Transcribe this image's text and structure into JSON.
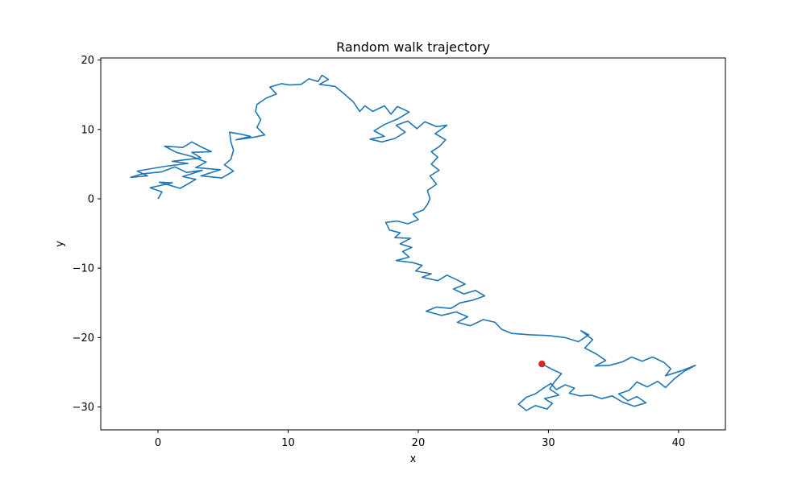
{
  "chart_data": {
    "type": "line",
    "title": "Random walk trajectory",
    "xlabel": "x",
    "ylabel": "y",
    "xlim": [
      -4.4,
      43.6
    ],
    "ylim": [
      -33.3,
      20.3
    ],
    "x_ticks": [
      0,
      10,
      20,
      30,
      40
    ],
    "y_ticks": [
      -30,
      -20,
      -10,
      0,
      10,
      20
    ],
    "grid": false,
    "series": [
      {
        "color": "#1f77b4",
        "points": [
          [
            0.0,
            0.0
          ],
          [
            0.3,
            1.0
          ],
          [
            -0.6,
            1.6
          ],
          [
            1.1,
            2.3
          ],
          [
            0.1,
            2.4
          ],
          [
            1.7,
            1.5
          ],
          [
            2.9,
            2.8
          ],
          [
            1.9,
            3.2
          ],
          [
            3.4,
            4.1
          ],
          [
            2.2,
            3.8
          ],
          [
            1.3,
            4.6
          ],
          [
            0.3,
            3.9
          ],
          [
            -1.2,
            3.6
          ],
          [
            -2.1,
            3.1
          ],
          [
            -0.8,
            3.3
          ],
          [
            -1.6,
            4.0
          ],
          [
            0.6,
            4.7
          ],
          [
            2.3,
            5.1
          ],
          [
            1.1,
            5.4
          ],
          [
            3.3,
            5.9
          ],
          [
            2.6,
            6.7
          ],
          [
            4.1,
            6.8
          ],
          [
            3.2,
            7.6
          ],
          [
            2.6,
            8.2
          ],
          [
            1.9,
            7.4
          ],
          [
            0.5,
            7.6
          ],
          [
            1.4,
            6.7
          ],
          [
            2.6,
            6.1
          ],
          [
            3.7,
            5.3
          ],
          [
            2.9,
            4.5
          ],
          [
            4.8,
            4.2
          ],
          [
            3.3,
            3.3
          ],
          [
            4.9,
            3.0
          ],
          [
            5.8,
            4.0
          ],
          [
            5.1,
            4.9
          ],
          [
            5.6,
            5.7
          ],
          [
            5.8,
            7.0
          ],
          [
            5.6,
            8.2
          ],
          [
            5.5,
            9.6
          ],
          [
            6.4,
            9.3
          ],
          [
            7.1,
            9.0
          ],
          [
            6.0,
            8.5
          ],
          [
            7.4,
            8.9
          ],
          [
            8.2,
            9.2
          ],
          [
            7.6,
            10.3
          ],
          [
            7.9,
            11.4
          ],
          [
            7.5,
            12.6
          ],
          [
            7.6,
            13.6
          ],
          [
            8.3,
            14.5
          ],
          [
            9.1,
            15.1
          ],
          [
            8.6,
            16.1
          ],
          [
            9.5,
            16.6
          ],
          [
            10.1,
            16.4
          ],
          [
            11.0,
            16.5
          ],
          [
            11.6,
            17.3
          ],
          [
            12.3,
            16.9
          ],
          [
            12.6,
            17.8
          ],
          [
            13.1,
            17.2
          ],
          [
            12.4,
            16.5
          ],
          [
            13.6,
            16.2
          ],
          [
            14.2,
            15.3
          ],
          [
            15.0,
            14.0
          ],
          [
            15.5,
            12.6
          ],
          [
            15.9,
            13.4
          ],
          [
            16.5,
            12.6
          ],
          [
            17.4,
            13.4
          ],
          [
            17.9,
            12.2
          ],
          [
            18.4,
            13.3
          ],
          [
            19.3,
            12.5
          ],
          [
            18.4,
            11.5
          ],
          [
            17.4,
            10.7
          ],
          [
            16.6,
            9.8
          ],
          [
            17.4,
            9.0
          ],
          [
            16.3,
            8.6
          ],
          [
            17.2,
            8.2
          ],
          [
            18.2,
            8.7
          ],
          [
            19.0,
            9.6
          ],
          [
            18.3,
            10.6
          ],
          [
            19.2,
            11.2
          ],
          [
            19.9,
            10.1
          ],
          [
            20.5,
            11.1
          ],
          [
            21.4,
            10.4
          ],
          [
            22.2,
            10.6
          ],
          [
            21.3,
            9.4
          ],
          [
            22.1,
            8.5
          ],
          [
            21.6,
            7.5
          ],
          [
            21.0,
            6.8
          ],
          [
            21.5,
            6.0
          ],
          [
            21.0,
            5.0
          ],
          [
            21.6,
            4.1
          ],
          [
            20.9,
            3.3
          ],
          [
            21.4,
            2.1
          ],
          [
            20.7,
            1.2
          ],
          [
            20.9,
            0.0
          ],
          [
            20.7,
            -0.8
          ],
          [
            20.4,
            -1.6
          ],
          [
            19.6,
            -2.2
          ],
          [
            20.0,
            -3.0
          ],
          [
            19.2,
            -3.6
          ],
          [
            18.4,
            -3.2
          ],
          [
            17.5,
            -3.4
          ],
          [
            17.8,
            -4.5
          ],
          [
            18.6,
            -4.9
          ],
          [
            18.2,
            -5.6
          ],
          [
            19.4,
            -5.7
          ],
          [
            18.6,
            -6.5
          ],
          [
            19.5,
            -7.0
          ],
          [
            18.8,
            -7.6
          ],
          [
            19.3,
            -8.4
          ],
          [
            18.3,
            -8.9
          ],
          [
            19.6,
            -9.2
          ],
          [
            20.3,
            -9.6
          ],
          [
            19.8,
            -10.4
          ],
          [
            21.0,
            -10.8
          ],
          [
            20.3,
            -11.3
          ],
          [
            21.5,
            -11.8
          ],
          [
            22.2,
            -11.0
          ],
          [
            23.0,
            -11.7
          ],
          [
            23.6,
            -12.3
          ],
          [
            22.7,
            -13.0
          ],
          [
            23.5,
            -13.7
          ],
          [
            24.4,
            -13.2
          ],
          [
            25.1,
            -14.0
          ],
          [
            24.2,
            -14.6
          ],
          [
            23.2,
            -15.0
          ],
          [
            22.5,
            -15.8
          ],
          [
            21.4,
            -15.6
          ],
          [
            20.6,
            -16.2
          ],
          [
            21.8,
            -16.8
          ],
          [
            22.9,
            -16.3
          ],
          [
            23.8,
            -17.0
          ],
          [
            23.0,
            -17.8
          ],
          [
            24.0,
            -18.3
          ],
          [
            25.0,
            -17.4
          ],
          [
            25.9,
            -17.8
          ],
          [
            26.4,
            -18.8
          ],
          [
            27.2,
            -19.4
          ],
          [
            28.6,
            -19.6
          ],
          [
            30.0,
            -19.7
          ],
          [
            31.3,
            -20.0
          ],
          [
            32.3,
            -20.6
          ],
          [
            33.1,
            -19.6
          ],
          [
            32.5,
            -19.0
          ],
          [
            33.4,
            -20.3
          ],
          [
            32.8,
            -21.5
          ],
          [
            33.7,
            -22.4
          ],
          [
            34.4,
            -23.3
          ],
          [
            33.6,
            -24.1
          ],
          [
            34.7,
            -24.0
          ],
          [
            35.7,
            -23.5
          ],
          [
            36.4,
            -22.8
          ],
          [
            37.2,
            -23.4
          ],
          [
            38.0,
            -22.8
          ],
          [
            38.9,
            -23.6
          ],
          [
            39.4,
            -24.5
          ],
          [
            39.0,
            -25.5
          ],
          [
            40.2,
            -24.8
          ],
          [
            41.3,
            -24.0
          ],
          [
            40.4,
            -24.9
          ],
          [
            39.7,
            -25.9
          ],
          [
            39.0,
            -27.2
          ],
          [
            38.4,
            -26.3
          ],
          [
            37.6,
            -27.1
          ],
          [
            36.8,
            -26.4
          ],
          [
            36.2,
            -27.6
          ],
          [
            35.4,
            -28.1
          ],
          [
            36.1,
            -29.1
          ],
          [
            36.8,
            -28.5
          ],
          [
            37.5,
            -29.4
          ],
          [
            36.6,
            -29.9
          ],
          [
            35.7,
            -29.3
          ],
          [
            34.9,
            -28.4
          ],
          [
            34.1,
            -28.8
          ],
          [
            33.3,
            -28.3
          ],
          [
            32.4,
            -28.4
          ],
          [
            31.6,
            -28.0
          ],
          [
            32.0,
            -27.3
          ],
          [
            31.3,
            -26.8
          ],
          [
            30.6,
            -27.5
          ],
          [
            30.2,
            -26.6
          ],
          [
            29.6,
            -27.3
          ],
          [
            29.0,
            -28.1
          ],
          [
            28.3,
            -28.6
          ],
          [
            27.7,
            -29.6
          ],
          [
            28.3,
            -30.5
          ],
          [
            29.0,
            -29.8
          ],
          [
            29.9,
            -30.3
          ],
          [
            30.3,
            -29.5
          ],
          [
            29.7,
            -28.8
          ],
          [
            30.8,
            -28.3
          ],
          [
            30.1,
            -27.4
          ],
          [
            30.5,
            -26.3
          ],
          [
            31.0,
            -25.2
          ],
          [
            30.3,
            -24.6
          ],
          [
            29.5,
            -23.8
          ]
        ]
      }
    ],
    "markers": [
      {
        "x": 29.5,
        "y": -23.8,
        "color": "#d62728"
      }
    ]
  }
}
